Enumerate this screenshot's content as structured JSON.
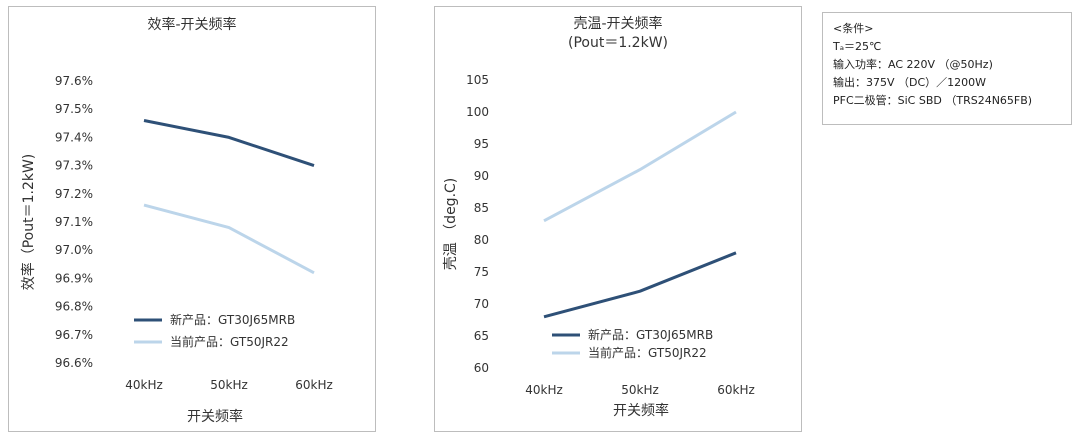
{
  "chart_data": [
    {
      "type": "line",
      "title": "效率-开关频率",
      "xlabel": "开关频率",
      "ylabel": "效率（Pout＝1.2kW)",
      "categories": [
        "40kHz",
        "50kHz",
        "60kHz"
      ],
      "ylim": [
        96.6,
        97.6
      ],
      "yticks": [
        "96.6%",
        "96.7%",
        "96.8%",
        "96.9%",
        "97.0%",
        "97.1%",
        "97.2%",
        "97.3%",
        "97.4%",
        "97.5%",
        "97.6%"
      ],
      "grid": false,
      "legend_position": "bottom-left",
      "series": [
        {
          "name": "新产品：GT30J65MRB",
          "values": [
            97.46,
            97.4,
            97.3
          ],
          "color": "#2e5077"
        },
        {
          "name": "当前产品：GT50JR22",
          "values": [
            97.16,
            97.08,
            96.92
          ],
          "color": "#bcd5ea"
        }
      ]
    },
    {
      "type": "line",
      "title": "壳温-开关频率",
      "subtitle": "(Pout＝1.2kW)",
      "xlabel": "开关频率",
      "ylabel": "壳温 （deg.C)",
      "categories": [
        "40kHz",
        "50kHz",
        "60kHz"
      ],
      "ylim": [
        60,
        105
      ],
      "yticks": [
        "60",
        "65",
        "70",
        "75",
        "80",
        "85",
        "90",
        "95",
        "100",
        "105"
      ],
      "grid": false,
      "legend_position": "bottom-right",
      "series": [
        {
          "name": "新产品：GT30J65MRB",
          "values": [
            68,
            72,
            78
          ],
          "color": "#2e5077"
        },
        {
          "name": "当前产品：GT50JR22",
          "values": [
            83,
            91,
            100
          ],
          "color": "#bcd5ea"
        }
      ]
    }
  ],
  "conditions": {
    "lines": [
      "<条件>",
      "Tₐ＝25℃",
      "输入功率：AC 220V （@50Hz)",
      "输出：375V （DC）／1200W",
      "PFC二极管：SiC SBD （TRS24N65FB)"
    ]
  }
}
